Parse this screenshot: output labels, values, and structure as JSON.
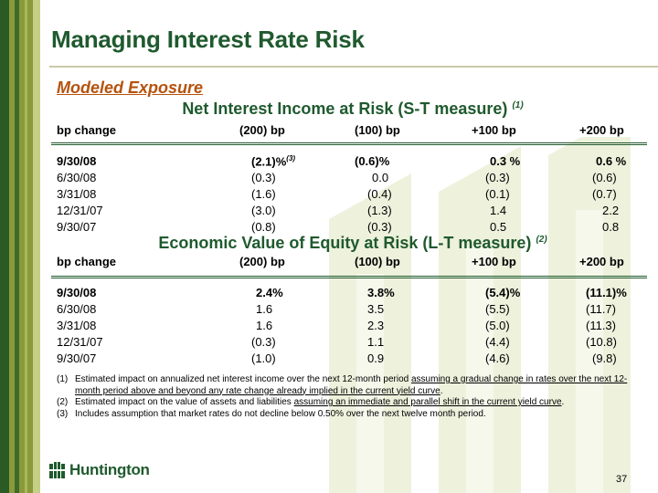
{
  "title": "Managing Interest Rate Risk",
  "subtitle": "Modeled Exposure",
  "section1": {
    "heading": "Net Interest Income at Risk (S-T measure)",
    "heading_note": "(1)",
    "header": [
      "bp change",
      "(200) bp",
      "(100) bp",
      "+100 bp",
      "+200 bp"
    ],
    "rows": [
      {
        "date": "9/30/08",
        "m200": "(2.1)%",
        "m200_note": "(3)",
        "m100": "(0.6)%",
        "p100": "0.3 %",
        "p200": "0.6 %"
      },
      {
        "date": "6/30/08",
        "m200": "(0.3)",
        "m100": "0.0",
        "p100": "(0.3)",
        "p200": "(0.6)"
      },
      {
        "date": "3/31/08",
        "m200": "(1.6)",
        "m100": "(0.4)",
        "p100": "(0.1)",
        "p200": "(0.7)"
      },
      {
        "date": "12/31/07",
        "m200": "(3.0)",
        "m100": "(1.3)",
        "p100": "1.4",
        "p200": "2.2"
      },
      {
        "date": "9/30/07",
        "m200": "(0.8)",
        "m100": "(0.3)",
        "p100": "0.5",
        "p200": "0.8"
      }
    ]
  },
  "section2": {
    "heading": "Economic Value of Equity at Risk (L-T measure)",
    "heading_note": "(2)",
    "header": [
      "bp change",
      "(200) bp",
      "(100) bp",
      "+100 bp",
      "+200 bp"
    ],
    "rows": [
      {
        "date": "9/30/08",
        "m200": "2.4%",
        "m100": "3.8%",
        "p100": "(5.4)%",
        "p200": "(11.1)%"
      },
      {
        "date": "6/30/08",
        "m200": "1.6",
        "m100": "3.5",
        "p100": "(5.5)",
        "p200": "(11.7)"
      },
      {
        "date": "3/31/08",
        "m200": "1.6",
        "m100": "2.3",
        "p100": "(5.0)",
        "p200": "(11.3)"
      },
      {
        "date": "12/31/07",
        "m200": "(0.3)",
        "m100": "1.1",
        "p100": "(4.4)",
        "p200": "(10.8)"
      },
      {
        "date": "9/30/07",
        "m200": "(1.0)",
        "m100": "0.9",
        "p100": "(4.6)",
        "p200": "(9.8)"
      }
    ]
  },
  "footnotes": [
    {
      "num": "(1)",
      "pre": "Estimated impact on annualized net interest income over the next 12-month period ",
      "underlined": "assuming a gradual change in rates over the next 12-month period above and beyond any rate change already implied in the current yield curve",
      "post": "."
    },
    {
      "num": "(2)",
      "pre": "Estimated impact on the value of assets and liabilities ",
      "underlined": "assuming an immediate and parallel shift in the current yield curve",
      "post": "."
    },
    {
      "num": "(3)",
      "pre": "Includes assumption that market rates do not decline below 0.50% over the next twelve month period.",
      "underlined": "",
      "post": ""
    }
  ],
  "logo_text": "Huntington",
  "page_number": "37",
  "colors": {
    "brand_green": "#1f5a2e",
    "accent_orange": "#b5520c",
    "bar_olive": "#8a9a3b"
  }
}
